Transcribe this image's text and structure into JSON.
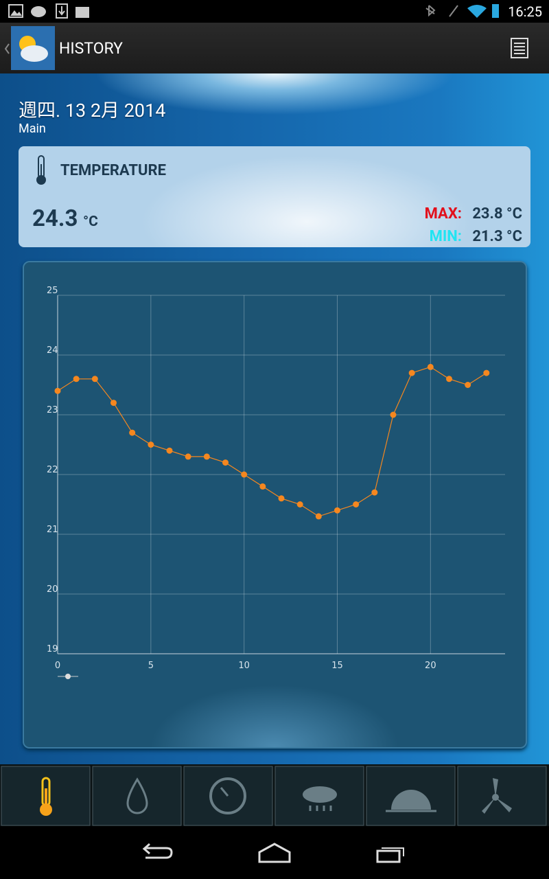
{
  "status_bar": {
    "time": "16:25"
  },
  "action_bar": {
    "title": "HISTORY"
  },
  "header": {
    "date": "週四. 13 2月 2014",
    "subtitle": "Main"
  },
  "card": {
    "label": "TEMPERATURE",
    "current_value": "24.3",
    "current_unit": "°C",
    "max_label": "MAX:",
    "max_value": "23.8 °C",
    "min_label": "MIN:",
    "min_value": "21.3 °C"
  },
  "chart_data": {
    "type": "line",
    "x": [
      0,
      1,
      2,
      3,
      4,
      5,
      6,
      7,
      8,
      9,
      10,
      11,
      12,
      13,
      14,
      15,
      16,
      17,
      18,
      19,
      20,
      21,
      22,
      23
    ],
    "series": [
      {
        "color": "#f5871f",
        "values": [
          23.4,
          23.6,
          23.6,
          23.2,
          22.7,
          22.5,
          22.4,
          22.3,
          22.3,
          22.2,
          22.0,
          21.8,
          21.6,
          21.5,
          21.3,
          21.4,
          21.5,
          21.7,
          23.0,
          23.7,
          23.8,
          23.6,
          23.5,
          23.7
        ]
      }
    ],
    "xlim": [
      0,
      24
    ],
    "xticks": [
      0,
      5,
      10,
      15,
      20
    ],
    "ylim": [
      19,
      25
    ],
    "yticks": [
      19,
      20,
      21,
      22,
      23,
      24,
      25
    ],
    "grid": true
  }
}
